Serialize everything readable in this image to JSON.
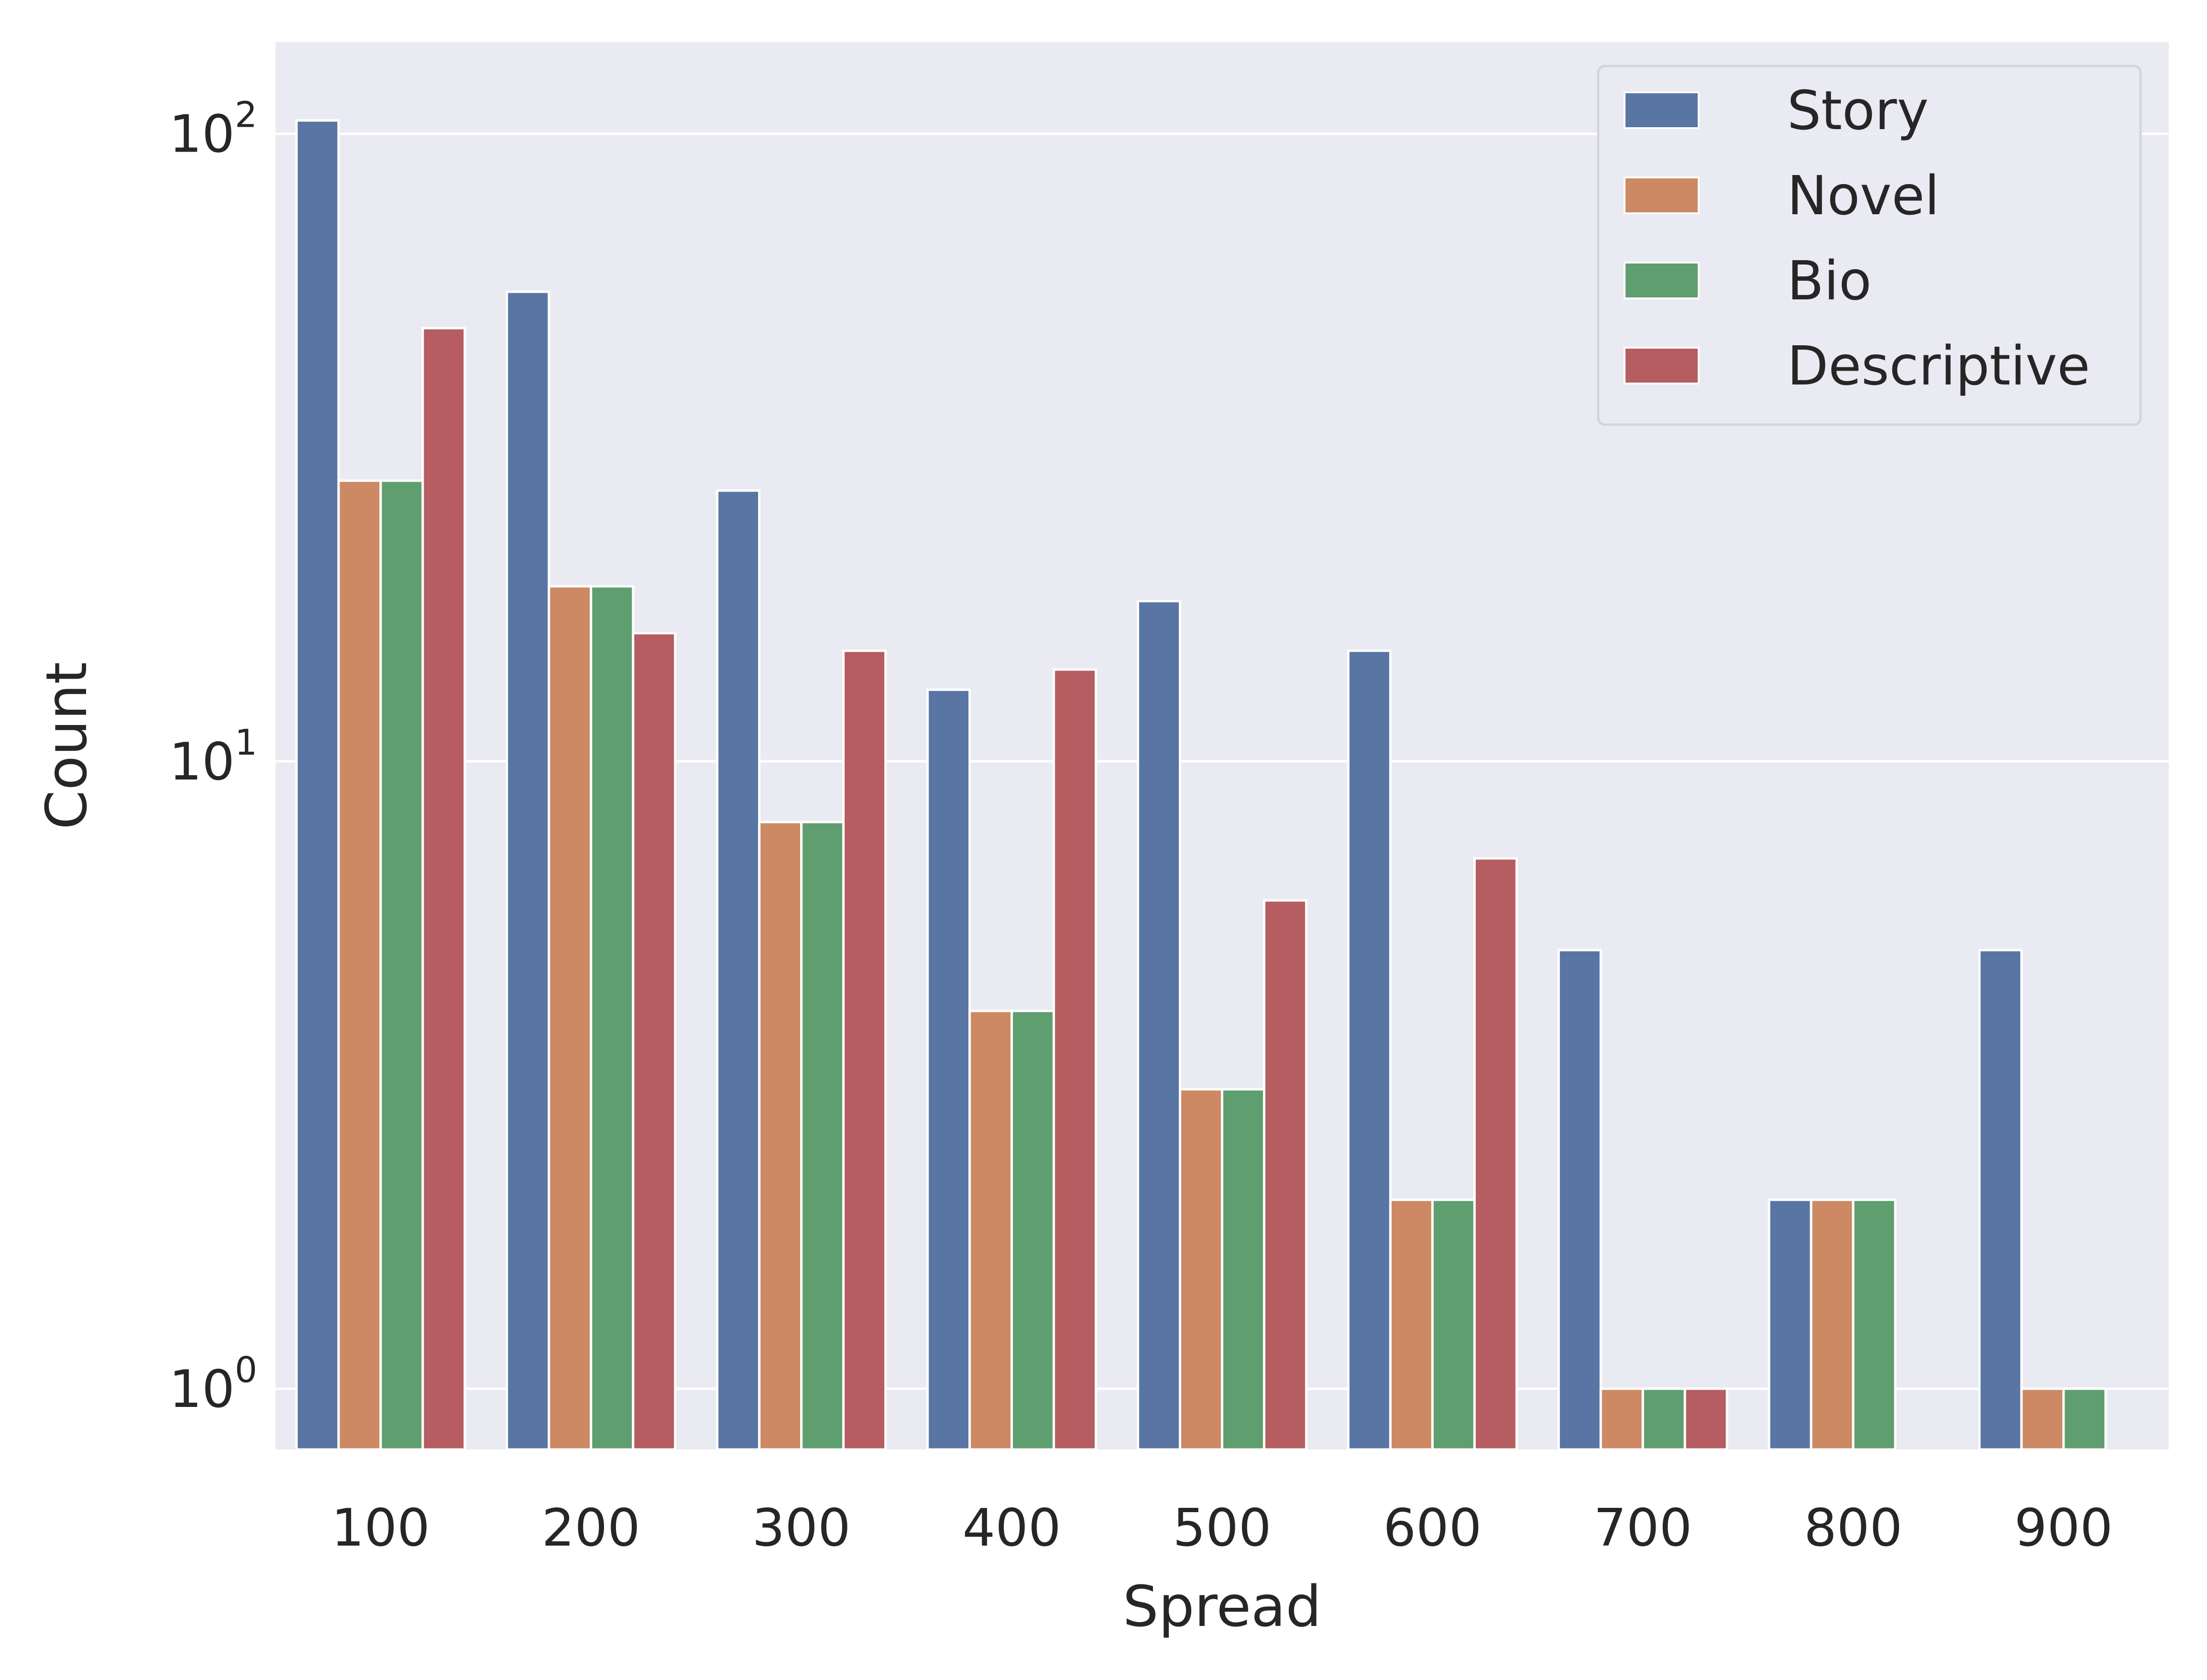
{
  "chart_data": {
    "type": "bar",
    "title": "",
    "xlabel": "Spread",
    "ylabel": "Count",
    "yscale": "log",
    "ylim": [
      0.8,
      140
    ],
    "grid": true,
    "legend_position": "top-right",
    "categories": [
      "100",
      "200",
      "300",
      "400",
      "500",
      "600",
      "700",
      "800",
      "900"
    ],
    "y_ticks": [
      {
        "value": 1,
        "base": "10",
        "exp": "0"
      },
      {
        "value": 10,
        "base": "10",
        "exp": "1"
      },
      {
        "value": 100,
        "base": "10",
        "exp": "2"
      }
    ],
    "series": [
      {
        "name": "Story",
        "color": "#5875a4",
        "values": [
          105,
          56,
          27,
          13,
          18,
          15,
          5,
          2,
          5
        ]
      },
      {
        "name": "Novel",
        "color": "#cc8963",
        "values": [
          28,
          19,
          8,
          4,
          3,
          2,
          1,
          2,
          1
        ]
      },
      {
        "name": "Bio",
        "color": "#5f9e6e",
        "values": [
          28,
          19,
          8,
          4,
          3,
          2,
          1,
          2,
          1
        ]
      },
      {
        "name": "Descriptive",
        "color": "#b55d60",
        "values": [
          49,
          16,
          15,
          14,
          6,
          7,
          1,
          null,
          null
        ]
      }
    ],
    "background_color": "#eaeaf2"
  }
}
